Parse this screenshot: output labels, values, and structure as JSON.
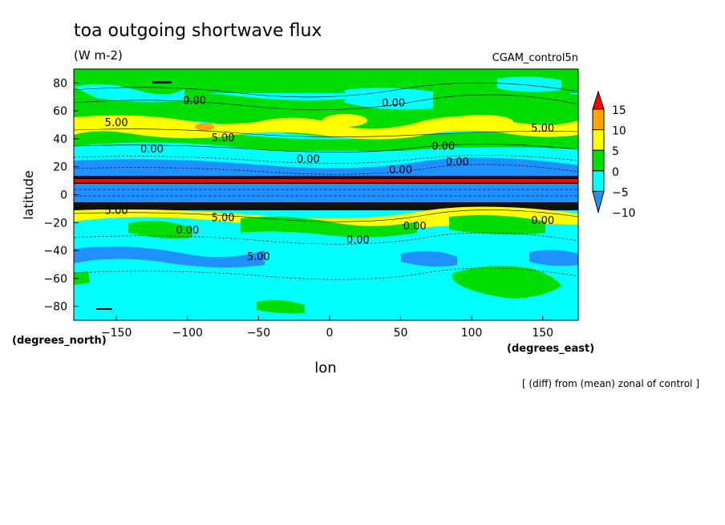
{
  "chart_data": {
    "type": "heatmap",
    "title": "toa outgoing shortwave flux",
    "units": "(W m-2)",
    "dataset": "CGAM_control5n",
    "subtitle": "[ (diff) from (mean) zonal of control ]",
    "xlabel": "lon",
    "ylabel": "latitude",
    "x_units": "(degrees_east)",
    "y_units": "(degrees_north)",
    "xlim": [
      -180,
      175
    ],
    "ylim": [
      -90,
      90
    ],
    "x_ticks": [
      -150,
      -100,
      -50,
      0,
      50,
      100,
      150
    ],
    "y_ticks": [
      80,
      60,
      40,
      20,
      0,
      -20,
      -40,
      -60,
      -80
    ],
    "colorbar": {
      "levels": [
        -10,
        -5,
        0,
        5,
        10,
        15
      ],
      "colors": [
        "#1e90ff",
        "#00ffff",
        "#00dd00",
        "#ffff00",
        "#ffa500",
        "#ff0000"
      ],
      "extend": "both"
    },
    "contour_labels": [
      {
        "text": "0.00",
        "lon": 45,
        "lat": 66
      },
      {
        "text": "5.00",
        "lon": -150,
        "lat": 52
      },
      {
        "text": "5.00",
        "lon": -75,
        "lat": 41
      },
      {
        "text": "5.00",
        "lon": 150,
        "lat": 48
      },
      {
        "text": "0.00",
        "lon": -125,
        "lat": 33
      },
      {
        "text": "0.00",
        "lon": -15,
        "lat": 26
      },
      {
        "text": "0.00",
        "lon": 80,
        "lat": 35
      },
      {
        "text": "0.00",
        "lon": 90,
        "lat": 24
      },
      {
        "text": "0.00",
        "lon": 50,
        "lat": 18
      },
      {
        "text": "5.00",
        "lon": -150,
        "lat": -11
      },
      {
        "text": "5.00",
        "lon": -75,
        "lat": -16
      },
      {
        "text": "0.00",
        "lon": 150,
        "lat": -18
      },
      {
        "text": "0.00",
        "lon": -100,
        "lat": -25
      },
      {
        "text": "0.00",
        "lon": 60,
        "lat": -22
      },
      {
        "text": "0.00",
        "lon": 20,
        "lat": -32
      },
      {
        "text": "5.00",
        "lon": -50,
        "lat": -44
      },
      {
        "text": "0.00",
        "lon": -95,
        "lat": 68
      }
    ]
  }
}
